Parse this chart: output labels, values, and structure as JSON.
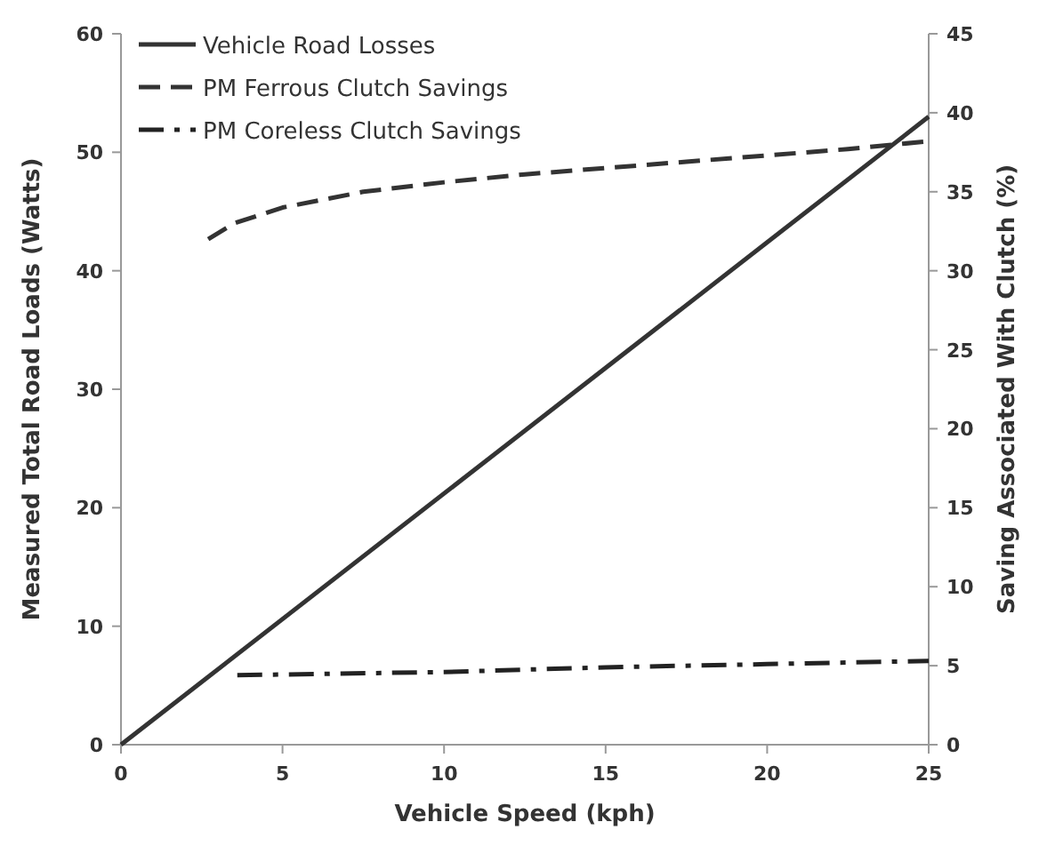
{
  "chart_data": {
    "type": "line",
    "xlabel": "Vehicle Speed (kph)",
    "ylabel": "Measured Total Road Loads (Watts)",
    "y2label": "Saving Associated With Clutch  (%)",
    "xlim": [
      0,
      25
    ],
    "xticks": [
      0,
      5,
      10,
      15,
      20,
      25
    ],
    "ylim": [
      0,
      60
    ],
    "yticks": [
      0,
      10,
      20,
      30,
      40,
      50,
      60
    ],
    "y2lim": [
      0,
      45
    ],
    "y2ticks": [
      0,
      5,
      10,
      15,
      20,
      25,
      30,
      35,
      40,
      45
    ],
    "grid": false,
    "legend": "top left",
    "series": [
      {
        "name": "Vehicle Road Losses",
        "color": "#333333",
        "line_style": "solid",
        "x": [
          0,
          25
        ],
        "values": [
          0,
          53
        ]
      },
      {
        "name": "PM Ferrous Clutch Savings",
        "color": "#333333",
        "line_style": "dashed",
        "axis": "y2",
        "x": [
          2.7,
          3.5,
          5,
          7.5,
          10,
          12.5,
          15,
          17.5,
          20,
          22.5,
          25
        ],
        "values": [
          32,
          33,
          34,
          35,
          35.6,
          36.1,
          36.5,
          36.9,
          37.3,
          37.7,
          38.2
        ]
      },
      {
        "name": "PM Coreless Clutch Savings",
        "color": "#222222",
        "line_style": "dashdot",
        "axis": "y2",
        "x": [
          3.6,
          10,
          15,
          20,
          25
        ],
        "values": [
          4.4,
          4.6,
          4.9,
          5.1,
          5.3
        ]
      }
    ]
  }
}
